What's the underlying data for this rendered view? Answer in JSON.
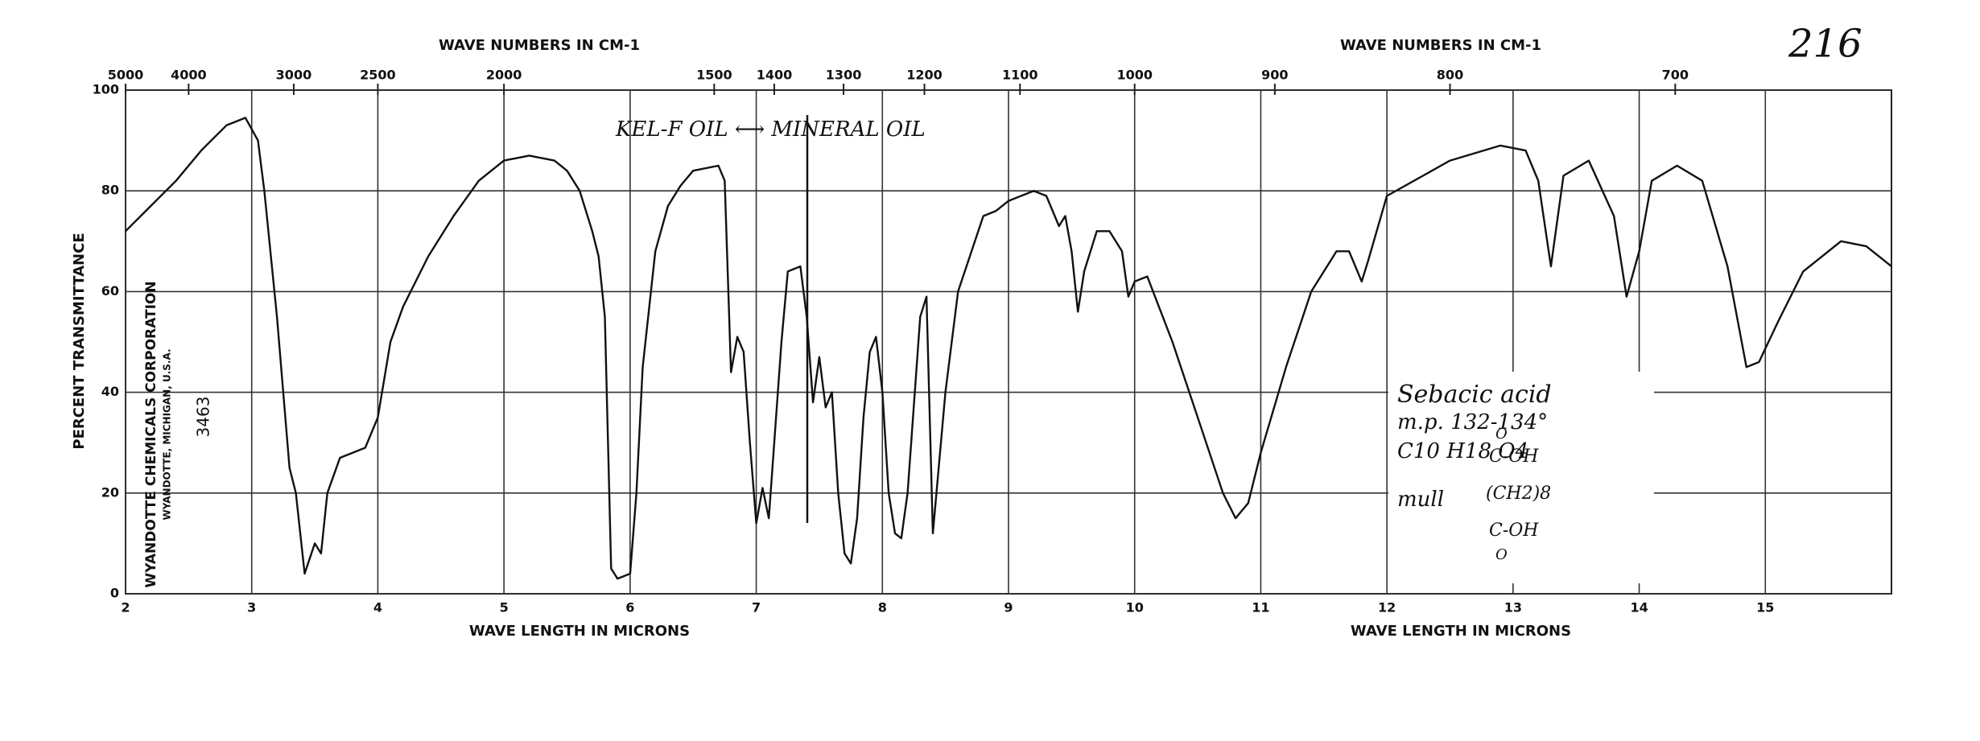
{
  "chart_data": {
    "type": "line",
    "xlabel": "WAVE LENGTH IN MICRONS",
    "x2label": "WAVE NUMBERS IN CM-1",
    "ylabel": "PERCENT TRANSMITTANCE",
    "page_number": "216",
    "header": [
      "WYANDOTTE CHEMICALS CORPORATION",
      "WYANDOTTE, MICHIGAN, U.S.A.",
      "3463"
    ],
    "annotations": [
      "KEL-F OIL ⟷ MINERAL OIL",
      "Sebacic acid",
      "m.p. 132-134°",
      "C10 H18 O4",
      "mull",
      "O",
      "C-OH",
      "(CH2)8",
      "C-OH",
      "O"
    ],
    "x": [
      2.0,
      2.2,
      2.4,
      2.6,
      2.8,
      2.95,
      3.05,
      3.1,
      3.2,
      3.3,
      3.35,
      3.42,
      3.5,
      3.55,
      3.6,
      3.7,
      3.8,
      3.9,
      4.0,
      4.1,
      4.2,
      4.4,
      4.6,
      4.8,
      5.0,
      5.2,
      5.4,
      5.5,
      5.6,
      5.7,
      5.75,
      5.8,
      5.85,
      5.9,
      6.0,
      6.05,
      6.1,
      6.2,
      6.3,
      6.4,
      6.5,
      6.7,
      6.75,
      6.8,
      6.85,
      6.9,
      6.95,
      7.0,
      7.05,
      7.1,
      7.2,
      7.25,
      7.35,
      7.4,
      7.45,
      7.5,
      7.55,
      7.6,
      7.65,
      7.7,
      7.75,
      7.8,
      7.85,
      7.9,
      7.95,
      8.0,
      8.03,
      8.05,
      8.1,
      8.15,
      8.2,
      8.3,
      8.35,
      8.4,
      8.5,
      8.6,
      8.8,
      8.9,
      9.0,
      9.2,
      9.3,
      9.4,
      9.45,
      9.5,
      9.55,
      9.6,
      9.7,
      9.8,
      9.9,
      9.95,
      10.0,
      10.1,
      10.3,
      10.5,
      10.7,
      10.8,
      10.9,
      11.0,
      11.2,
      11.4,
      11.6,
      11.7,
      11.8,
      11.85,
      12.0,
      12.5,
      12.9,
      13.1,
      13.2,
      13.3,
      13.4,
      13.6,
      13.8,
      13.9,
      14.0,
      14.1,
      14.3,
      14.5,
      14.7,
      14.85,
      14.95,
      15.1,
      15.3,
      15.6,
      15.8,
      16.0
    ],
    "values": [
      72,
      77,
      82,
      88,
      93,
      94.5,
      90,
      80,
      55,
      25,
      20,
      4,
      10,
      8,
      20,
      27,
      28,
      29,
      35,
      50,
      57,
      67,
      75,
      82,
      86,
      87,
      86,
      84,
      80,
      72,
      67,
      55,
      5,
      3,
      4,
      20,
      45,
      68,
      77,
      81,
      84,
      85,
      82,
      44,
      51,
      48,
      30,
      14,
      21,
      15,
      50,
      64,
      65,
      55,
      38,
      47,
      37,
      40,
      20,
      8,
      6,
      15,
      35,
      48,
      51,
      40,
      28,
      20,
      12,
      11,
      20,
      55,
      59,
      12,
      40,
      60,
      75,
      76,
      78,
      80,
      79,
      73,
      75,
      68,
      56,
      64,
      72,
      72,
      68,
      59,
      62,
      63,
      50,
      35,
      20,
      15,
      18,
      28,
      45,
      60,
      68,
      68,
      62,
      66,
      79,
      86,
      89,
      88,
      82,
      65,
      83,
      86,
      75,
      59,
      68,
      82,
      85,
      82,
      65,
      45,
      46,
      54,
      64,
      70,
      69,
      65
    ],
    "color": "#111111",
    "xlim": [
      2,
      16
    ],
    "xticks": [
      2,
      3,
      4,
      5,
      6,
      7,
      8,
      9,
      10,
      11,
      12,
      13,
      14,
      15
    ],
    "x2lim": [
      5000,
      625
    ],
    "x2ticks": [
      5000,
      4000,
      3000,
      2500,
      2000,
      1500,
      1400,
      1300,
      1200,
      1100,
      1000,
      900,
      800,
      700
    ],
    "ylim": [
      0,
      100
    ],
    "yticks": [
      0,
      20,
      40,
      60,
      80,
      100
    ],
    "grid": true
  }
}
